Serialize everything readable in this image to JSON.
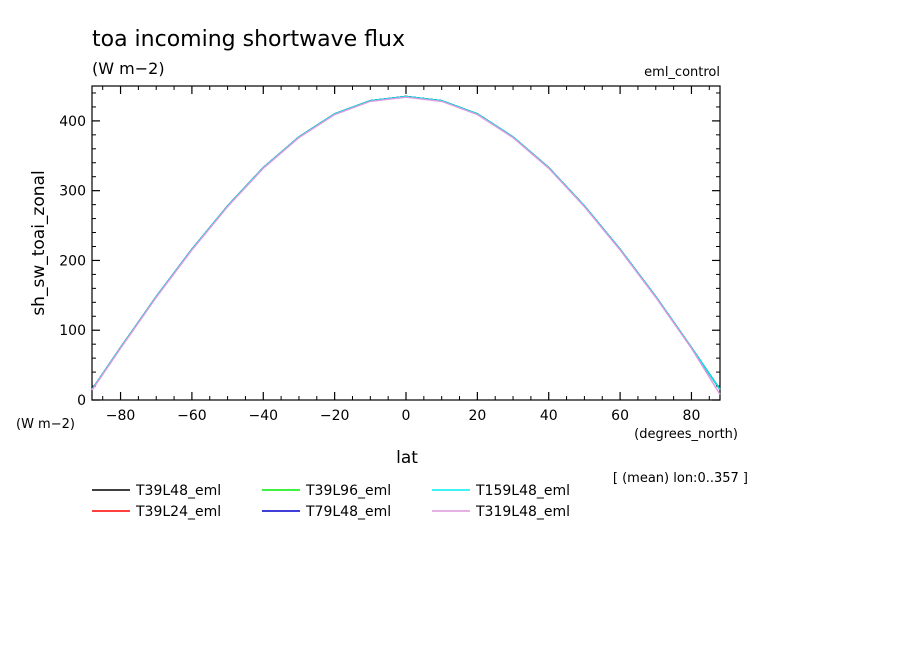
{
  "chart_data": {
    "type": "line",
    "title": "toa incoming shortwave flux",
    "units": "(W m−2)",
    "experiment": "eml_control",
    "xlabel": "lat",
    "x_units": "(degrees_north)",
    "ylabel": "sh_sw_toai_zonal",
    "y_units": "(W m−2)",
    "note": "[ (mean) lon:0..357 ]",
    "xlim": [
      -88,
      88
    ],
    "ylim": [
      0,
      450
    ],
    "x_ticks": [
      -80,
      -60,
      -40,
      -20,
      0,
      20,
      40,
      60,
      80
    ],
    "y_ticks": [
      0,
      100,
      200,
      300,
      400
    ],
    "x": [
      -88,
      -80,
      -70,
      -60,
      -50,
      -40,
      -30,
      -20,
      -10,
      0,
      10,
      20,
      30,
      40,
      50,
      60,
      70,
      80,
      88
    ],
    "series": [
      {
        "name": "T39L48_eml",
        "color": "#000000",
        "values": [
          15,
          75,
          148,
          216,
          278,
          333,
          377,
          410,
          429,
          435,
          429,
          410,
          377,
          333,
          278,
          216,
          148,
          75,
          15
        ]
      },
      {
        "name": "T39L24_eml",
        "color": "#ff0000",
        "values": [
          15,
          75,
          148,
          216,
          278,
          333,
          377,
          410,
          429,
          435,
          429,
          410,
          377,
          333,
          278,
          216,
          148,
          75,
          15
        ]
      },
      {
        "name": "T39L96_eml",
        "color": "#00ee00",
        "values": [
          15,
          75,
          148,
          216,
          278,
          333,
          377,
          410,
          429,
          435,
          429,
          410,
          377,
          333,
          278,
          216,
          148,
          75,
          15
        ]
      },
      {
        "name": "T79L48_eml",
        "color": "#0000cc",
        "values": [
          15,
          75,
          148,
          216,
          278,
          333,
          377,
          410,
          429,
          435,
          429,
          410,
          377,
          333,
          278,
          216,
          148,
          75,
          15
        ]
      },
      {
        "name": "T159L48_eml",
        "color": "#00eeee",
        "values": [
          15,
          75,
          148,
          216,
          278,
          333,
          377,
          410,
          429,
          435,
          429,
          410,
          377,
          333,
          278,
          216,
          148,
          75,
          15
        ]
      },
      {
        "name": "T319L48_eml",
        "color": "#dd99dd",
        "values": [
          14,
          74,
          147,
          215,
          277,
          332,
          376,
          409,
          428,
          434,
          428,
          409,
          376,
          332,
          277,
          215,
          147,
          74,
          8
        ]
      }
    ],
    "grid": false,
    "legend_placement": "bottom-left"
  }
}
